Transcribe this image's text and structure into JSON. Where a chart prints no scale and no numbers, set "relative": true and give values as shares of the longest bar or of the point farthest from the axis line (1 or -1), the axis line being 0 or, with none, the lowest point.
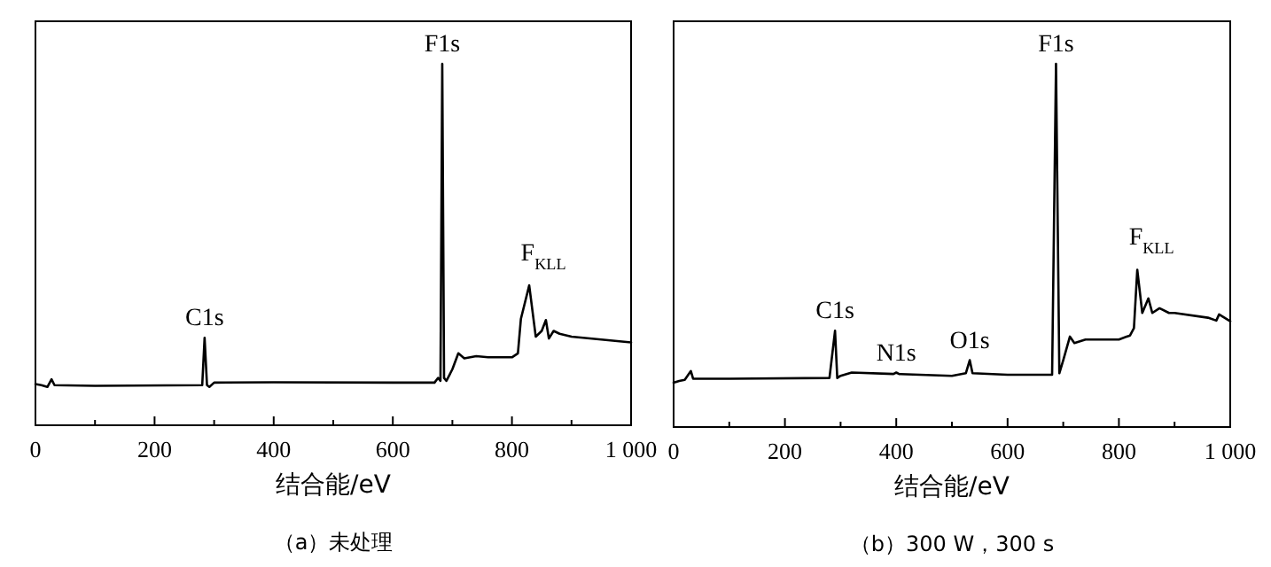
{
  "chart_data": [
    {
      "type": "line",
      "title": "（a）未处理",
      "xlabel": "结合能/eV",
      "relative": true,
      "xlim": [
        0,
        1000
      ],
      "xticks": [
        0,
        {
          "value": 100,
          "label": null
        },
        200,
        {
          "value": 300,
          "label": null
        },
        400,
        {
          "value": 500,
          "label": null
        },
        600,
        {
          "value": 700,
          "label": null
        },
        800,
        {
          "value": 900,
          "label": null
        },
        {
          "value": 1000,
          "label": "1 000"
        }
      ],
      "series": [
        {
          "color": "#000000",
          "x": [
            0,
            10,
            20,
            27,
            32,
            100,
            280,
            284,
            288,
            292,
            300,
            400,
            600,
            670,
            676,
            680,
            683,
            686,
            690,
            700,
            710,
            720,
            740,
            760,
            800,
            810,
            815,
            829,
            840,
            850,
            857,
            862,
            870,
            880,
            900,
            1000
          ],
          "values": [
            0.114,
            0.111,
            0.106,
            0.127,
            0.111,
            0.109,
            0.111,
            0.242,
            0.111,
            0.106,
            0.118,
            0.119,
            0.118,
            0.118,
            0.131,
            0.123,
            1.0,
            0.131,
            0.123,
            0.155,
            0.199,
            0.185,
            0.191,
            0.188,
            0.188,
            0.199,
            0.294,
            0.387,
            0.245,
            0.261,
            0.291,
            0.24,
            0.261,
            0.253,
            0.245,
            0.229
          ]
        }
      ],
      "annotations": [
        {
          "text": "C1s",
          "x": 284,
          "y": 0.242
        },
        {
          "text": "F1s",
          "x": 683,
          "y": 1.0
        },
        {
          "text": "F$_{KLL}$",
          "x": 829,
          "y": 0.387
        }
      ]
    },
    {
      "type": "line",
      "title": "（b）300 W，300 s",
      "xlabel": "结合能/eV",
      "relative": true,
      "xlim": [
        0,
        1000
      ],
      "xticks": [
        0,
        {
          "value": 100,
          "label": null
        },
        200,
        {
          "value": 300,
          "label": null
        },
        400,
        {
          "value": 500,
          "label": null
        },
        600,
        {
          "value": 700,
          "label": null
        },
        800,
        {
          "value": 900,
          "label": null
        },
        {
          "value": 1000,
          "label": "1 000"
        }
      ],
      "series": [
        {
          "color": "#000000",
          "x": [
            0,
            10,
            20,
            31,
            35,
            100,
            280,
            290,
            294,
            300,
            320,
            395,
            400,
            405,
            500,
            525,
            532,
            537,
            600,
            680,
            687,
            693,
            700,
            712,
            720,
            740,
            800,
            820,
            827,
            833,
            842,
            853,
            860,
            873,
            890,
            900,
            960,
            975,
            980,
            1000
          ],
          "values": [
            0.122,
            0.127,
            0.13,
            0.154,
            0.133,
            0.133,
            0.135,
            0.265,
            0.135,
            0.141,
            0.15,
            0.146,
            0.15,
            0.146,
            0.141,
            0.148,
            0.184,
            0.148,
            0.144,
            0.144,
            1.0,
            0.148,
            0.184,
            0.249,
            0.231,
            0.241,
            0.241,
            0.252,
            0.272,
            0.433,
            0.314,
            0.354,
            0.314,
            0.327,
            0.314,
            0.314,
            0.301,
            0.293,
            0.31,
            0.291
          ]
        }
      ],
      "annotations": [
        {
          "text": "C1s",
          "x": 290,
          "y": 0.265
        },
        {
          "text": "N1s",
          "x": 400,
          "y": 0.15
        },
        {
          "text": "O1s",
          "x": 532,
          "y": 0.184
        },
        {
          "text": "F1s",
          "x": 687,
          "y": 1.0
        },
        {
          "text": "F$_{KLL}$",
          "x": 833,
          "y": 0.433
        }
      ]
    }
  ]
}
